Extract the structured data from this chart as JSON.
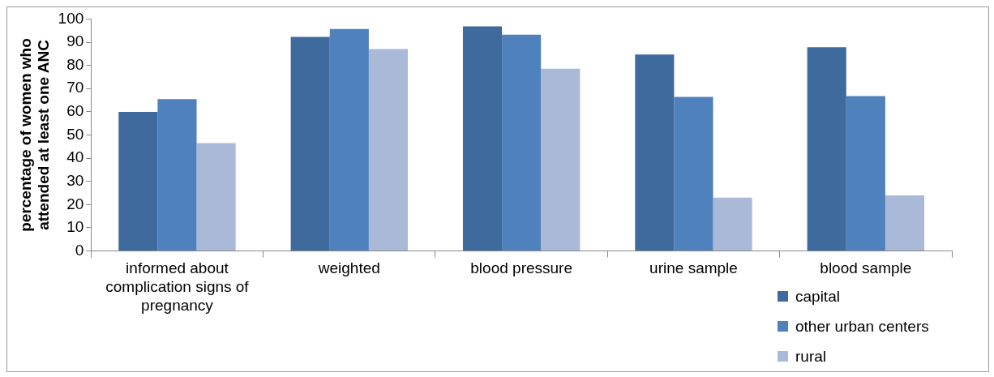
{
  "chart_data": {
    "type": "bar",
    "ylabel": "percentage of women who attended at least one ANC",
    "categories": [
      "informed about complication signs of pregnancy",
      "weighted",
      "blood pressure",
      "urine sample",
      "blood sample"
    ],
    "series": [
      {
        "name": "capital",
        "color": "#3f6a9d",
        "values": [
          60,
          92.3,
          96.8,
          84.7,
          87.8
        ]
      },
      {
        "name": "other urban centers",
        "color": "#4f81bd",
        "values": [
          65.5,
          95.7,
          93.2,
          66.4,
          66.8
        ]
      },
      {
        "name": "rural",
        "color": "#aab9d7",
        "values": [
          46.5,
          87,
          78.6,
          23,
          24
        ]
      }
    ],
    "ylim": [
      0,
      100
    ],
    "yticks": [
      0,
      10,
      20,
      30,
      40,
      50,
      60,
      70,
      80,
      90,
      100
    ],
    "grid": false,
    "legend": "bottom right"
  }
}
